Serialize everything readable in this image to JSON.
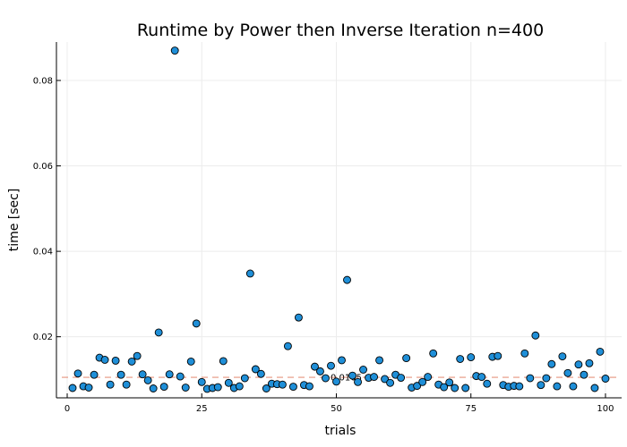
{
  "chart_data": {
    "type": "scatter",
    "title": "Runtime by Power then Inverse Iteration  n=400",
    "xlabel": "trials",
    "ylabel": "time [sec]",
    "xlim": [
      -2,
      103
    ],
    "ylim": [
      0.0057,
      0.089
    ],
    "xticks": [
      0,
      25,
      50,
      75,
      100
    ],
    "xtick_labels": [
      "0",
      "25",
      "50",
      "75",
      "100"
    ],
    "yticks": [
      0.02,
      0.04,
      0.06,
      0.08
    ],
    "ytick_labels": [
      "0.02",
      "0.04",
      "0.06",
      "0.08"
    ],
    "grid": true,
    "legend": "none",
    "marker_color": "#1f8fd8",
    "reference_line": {
      "y": 0.0105,
      "label": "0.0105",
      "color": "#e07a5f",
      "style": "dashed"
    },
    "series": [
      {
        "x": [
          1,
          2,
          3,
          4,
          5,
          6,
          7,
          8,
          9,
          10,
          11,
          12,
          13,
          14,
          15,
          16,
          17,
          18,
          19,
          20,
          21,
          22,
          23,
          24,
          25,
          26,
          27,
          28,
          29,
          30,
          31,
          32,
          33,
          34,
          35,
          36,
          37,
          38,
          39,
          40,
          41,
          42,
          43,
          44,
          45,
          46,
          47,
          48,
          49,
          50,
          51,
          52,
          53,
          54,
          55,
          56,
          57,
          58,
          59,
          60,
          61,
          62,
          63,
          64,
          65,
          66,
          67,
          68,
          69,
          70,
          71,
          72,
          73,
          74,
          75,
          76,
          77,
          78,
          79,
          80,
          81,
          82,
          83,
          84,
          85,
          86,
          87,
          88,
          89,
          90,
          91,
          92,
          93,
          94,
          95,
          96,
          97,
          98,
          99,
          100
        ],
        "y": [
          0.008,
          0.0114,
          0.0084,
          0.0081,
          0.0111,
          0.0151,
          0.0146,
          0.0088,
          0.0144,
          0.0111,
          0.0088,
          0.0142,
          0.0155,
          0.0112,
          0.0098,
          0.0079,
          0.021,
          0.0083,
          0.0112,
          0.087,
          0.0107,
          0.0081,
          0.0142,
          0.0231,
          0.0094,
          0.0078,
          0.008,
          0.0082,
          0.0143,
          0.0092,
          0.008,
          0.0084,
          0.0103,
          0.0348,
          0.0124,
          0.0113,
          0.0079,
          0.009,
          0.0089,
          0.0088,
          0.0178,
          0.0083,
          0.0245,
          0.0087,
          0.0084,
          0.013,
          0.0119,
          0.0103,
          0.0132,
          0.0095,
          0.0145,
          0.0333,
          0.0109,
          0.0094,
          0.0123,
          0.0104,
          0.0106,
          0.0145,
          0.0101,
          0.0092,
          0.0111,
          0.0104,
          0.015,
          0.0081,
          0.0085,
          0.0094,
          0.0106,
          0.0161,
          0.0088,
          0.0082,
          0.0093,
          0.008,
          0.0148,
          0.008,
          0.0152,
          0.0108,
          0.0106,
          0.009,
          0.0153,
          0.0155,
          0.0087,
          0.0083,
          0.0085,
          0.0084,
          0.0161,
          0.0103,
          0.0203,
          0.0087,
          0.0103,
          0.0136,
          0.0084,
          0.0154,
          0.0115,
          0.0084,
          0.0135,
          0.0111,
          0.0138,
          0.008,
          0.0165,
          0.0102
        ]
      }
    ]
  }
}
